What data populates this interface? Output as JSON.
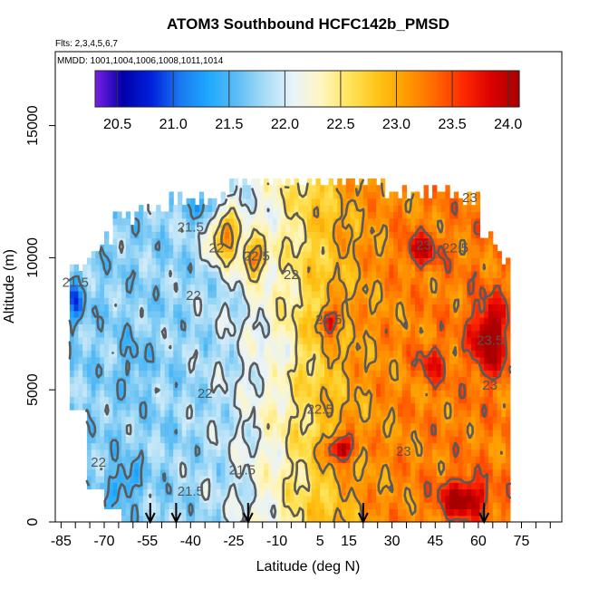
{
  "chart_data": {
    "type": "heatmap",
    "title": "ATOM3 Southbound HCFC142b_PMSD",
    "subtitle_flights": "Flts: 2,3,4,5,6,7",
    "subtitle_dates": "MMDD: 1001,1004,1006,1008,1011,1014",
    "xlabel": "Latitude (deg N)",
    "ylabel": "Altitude (m)",
    "xlim": [
      -87,
      89
    ],
    "ylim": [
      0,
      17800
    ],
    "x_ticks": [
      -85,
      -80,
      -75,
      -70,
      -65,
      -60,
      -55,
      -50,
      -45,
      -40,
      -35,
      -30,
      -25,
      -20,
      -15,
      -10,
      -5,
      0,
      5,
      10,
      15,
      20,
      25,
      30,
      35,
      40,
      45,
      50,
      55,
      60,
      65,
      70,
      75,
      80,
      85
    ],
    "x_tick_labels": [
      "-85",
      "-70",
      "-55",
      "-40",
      "-25",
      "-10",
      "5",
      "15",
      "30",
      "45",
      "60",
      "75"
    ],
    "x_tick_label_values": [
      -85,
      -70,
      -55,
      -40,
      -25,
      -10,
      5,
      15,
      30,
      45,
      60,
      75
    ],
    "y_ticks": [
      0,
      5000,
      10000,
      15000
    ],
    "y_tick_labels": [
      "0",
      "5000",
      "10000",
      "15000"
    ],
    "colorbar": {
      "min": 20.3,
      "max": 24.1,
      "tick_labels": [
        "20.5",
        "21.0",
        "21.5",
        "22.0",
        "22.5",
        "23.0",
        "23.5",
        "24.0"
      ],
      "tick_values": [
        20.5,
        21.0,
        21.5,
        22.0,
        22.5,
        23.0,
        23.5,
        24.0
      ],
      "colors": [
        "#7a1fe6",
        "#0000aa",
        "#0022dd",
        "#1a78f0",
        "#1fa8ff",
        "#5bbcf4",
        "#a8dcf6",
        "#e8f3fb",
        "#fff6c0",
        "#ffe45a",
        "#ffc417",
        "#ff9c00",
        "#ff6a00",
        "#ff2a00",
        "#dd0000",
        "#a80000"
      ]
    },
    "contour_levels": [
      21.5,
      22,
      22.5,
      23,
      23.5
    ],
    "contour_labels": [
      {
        "text": "21.5",
        "x": -40,
        "y": 11000
      },
      {
        "text": "22",
        "x": -31,
        "y": 10200
      },
      {
        "text": "22.5",
        "x": -17,
        "y": 9900
      },
      {
        "text": "23",
        "x": 57,
        "y": 12100
      },
      {
        "text": "23",
        "x": 41,
        "y": 10300
      },
      {
        "text": "22.5",
        "x": 52,
        "y": 10200
      },
      {
        "text": "22",
        "x": -5,
        "y": 9200
      },
      {
        "text": "22",
        "x": -39,
        "y": 8400
      },
      {
        "text": "21.5",
        "x": -80,
        "y": 8900
      },
      {
        "text": "22.5",
        "x": 8,
        "y": 7500
      },
      {
        "text": "23.5",
        "x": 64,
        "y": 6700
      },
      {
        "text": "23",
        "x": 64,
        "y": 5000
      },
      {
        "text": "22",
        "x": -35,
        "y": 4700
      },
      {
        "text": "22.5",
        "x": 5,
        "y": 4100
      },
      {
        "text": "23",
        "x": 34,
        "y": 2500
      },
      {
        "text": "22",
        "x": -72,
        "y": 2100
      },
      {
        "text": "21.5",
        "x": -22,
        "y": 1800
      },
      {
        "text": "21.5",
        "x": -40,
        "y": 1000
      }
    ],
    "profile_arrows_latitude": [
      -54,
      -45,
      -20,
      20,
      62
    ],
    "data_coverage": {
      "lat_min": -82,
      "lat_max": 71,
      "alt_min": 0,
      "alt_max": 13000
    }
  }
}
